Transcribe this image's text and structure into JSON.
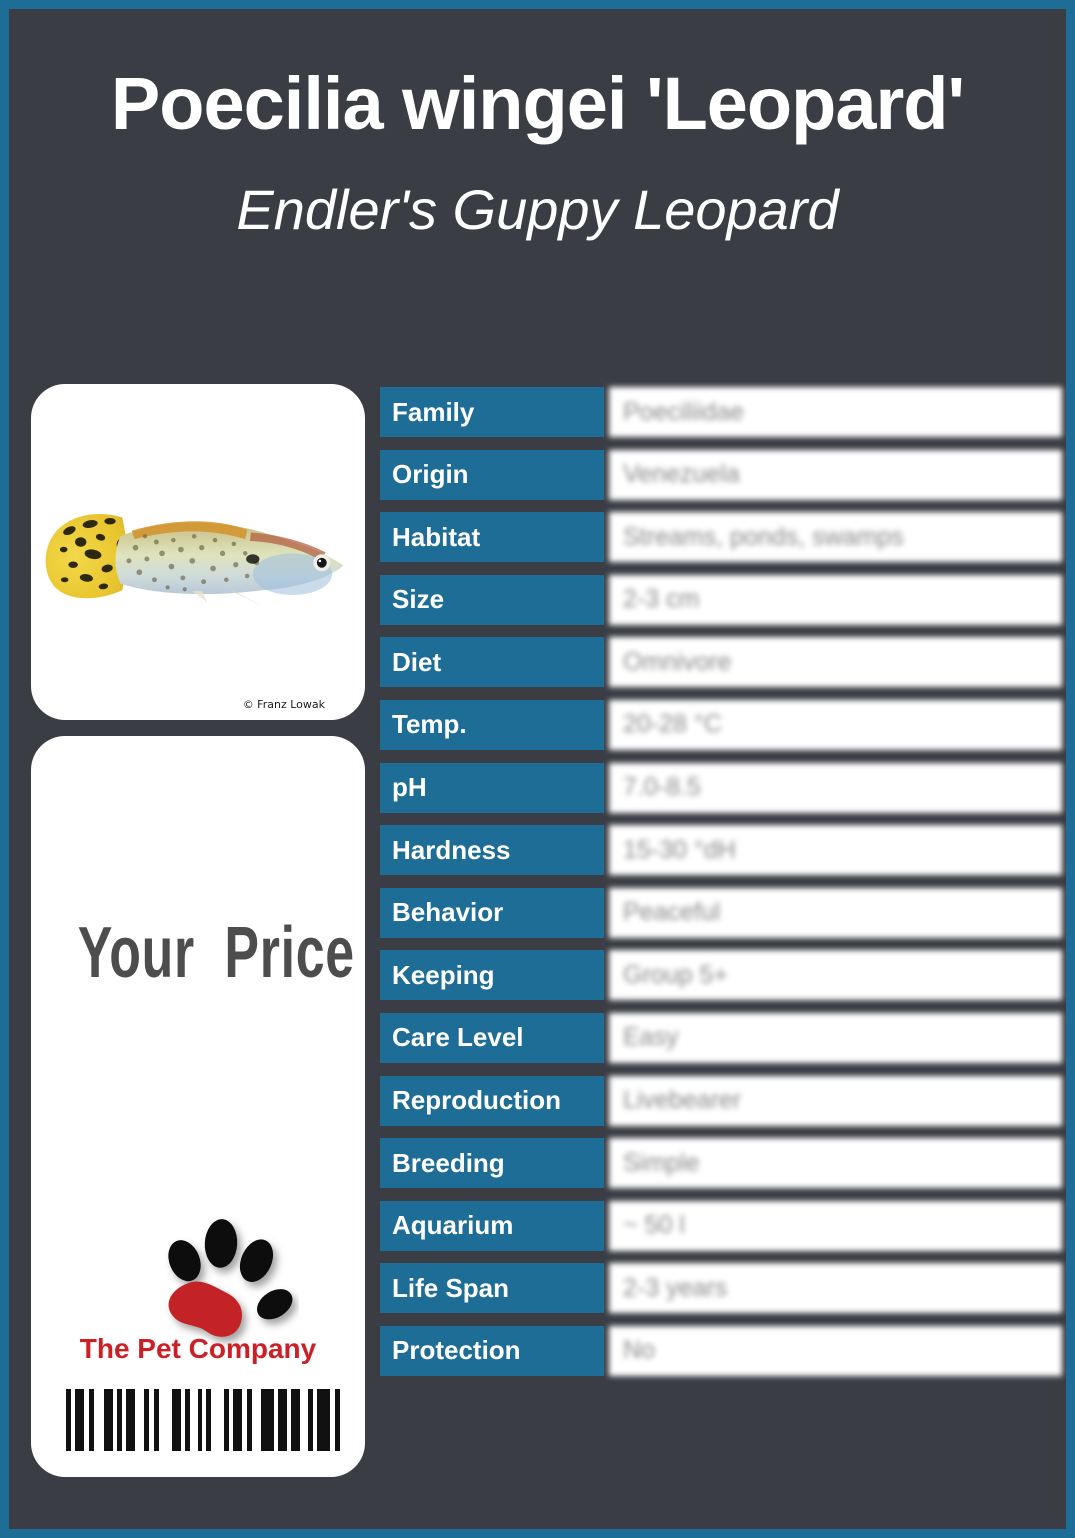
{
  "colors": {
    "accent_teal": "#1e6d96",
    "background": "#3a3d44",
    "card_white": "#ffffff",
    "brand_red": "#cc2027",
    "price_text_gray": "#4d4d4d",
    "value_text_gray": "#8a8a8a"
  },
  "header": {
    "title": "Poecilia wingei 'Leopard'",
    "subtitle": "Endler's Guppy Leopard"
  },
  "photo_card": {
    "credit": "© Franz Lowak"
  },
  "price_card": {
    "price_label": "Your Price",
    "brand": "The Pet Company",
    "barcode_pattern": [
      5,
      4,
      9,
      5,
      5,
      10,
      9,
      4,
      5,
      4,
      9,
      9,
      5,
      5,
      5,
      13,
      9,
      4,
      5,
      8,
      4,
      4,
      5,
      13,
      5,
      4,
      9,
      5,
      5,
      9,
      13,
      4,
      9,
      4,
      9,
      8,
      5,
      4,
      13,
      5,
      5
    ]
  },
  "table": {
    "rows": [
      {
        "label": "Family",
        "value": "Poeciliidae"
      },
      {
        "label": "Origin",
        "value": "Venezuela"
      },
      {
        "label": "Habitat",
        "value": "Streams, ponds, swamps"
      },
      {
        "label": "Size",
        "value": "2-3 cm"
      },
      {
        "label": "Diet",
        "value": "Omnivore"
      },
      {
        "label": "Temp.",
        "value": "20-28 °C"
      },
      {
        "label": "pH",
        "value": "7.0-8.5"
      },
      {
        "label": "Hardness",
        "value": "15-30 °dH"
      },
      {
        "label": "Behavior",
        "value": "Peaceful"
      },
      {
        "label": "Keeping",
        "value": "Group 5+"
      },
      {
        "label": "Care Level",
        "value": "Easy"
      },
      {
        "label": "Reproduction",
        "value": "Livebearer"
      },
      {
        "label": "Breeding",
        "value": "Simple"
      },
      {
        "label": "Aquarium",
        "value": "~ 50 l"
      },
      {
        "label": "Life Span",
        "value": "2-3 years"
      },
      {
        "label": "Protection",
        "value": "No"
      }
    ]
  }
}
